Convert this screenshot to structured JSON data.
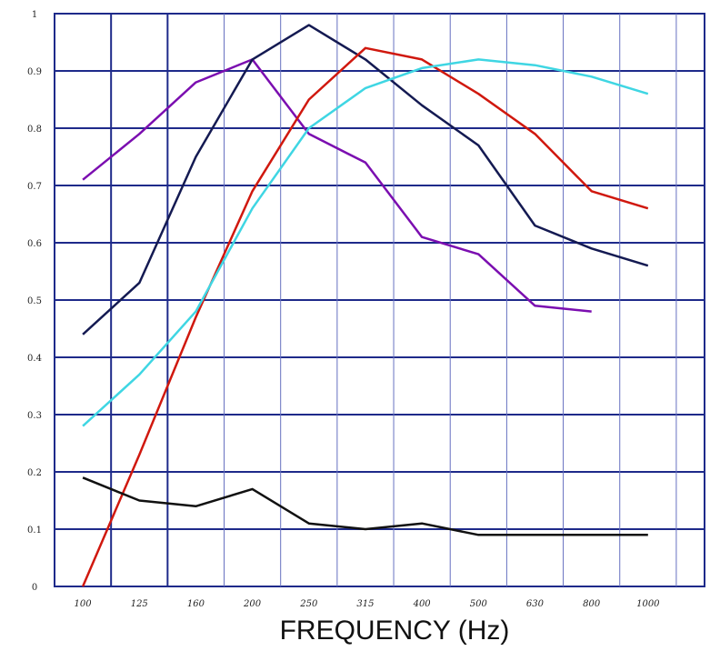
{
  "chart_data": {
    "type": "line",
    "title": "",
    "xlabel": "FREQUENCY (Hz)",
    "ylabel": "",
    "x": [
      "100",
      "125",
      "160",
      "200",
      "250",
      "315",
      "400",
      "500",
      "630",
      "800",
      "1000"
    ],
    "x_tick_labels": [
      "100",
      "125",
      "160",
      "200",
      "250",
      "315",
      "400",
      "500",
      "630",
      "800",
      "1000"
    ],
    "y_tick_labels": [
      "0",
      "0.1",
      "0.2",
      "0.3",
      "0.4",
      "0.5",
      "0.6",
      "0.7",
      "0.8",
      "0.9",
      "1"
    ],
    "ylim": [
      0,
      1
    ],
    "grid": true,
    "series": [
      {
        "color": "#7b0eb0",
        "values": [
          0.71,
          0.79,
          0.88,
          0.92,
          0.79,
          0.74,
          0.61,
          0.58,
          0.49,
          0.48,
          null
        ]
      },
      {
        "color": "#141a52",
        "values": [
          0.44,
          0.53,
          0.75,
          0.92,
          0.98,
          0.92,
          0.84,
          0.77,
          0.63,
          0.59,
          0.56
        ]
      },
      {
        "color": "#d0180e",
        "values": [
          0.0,
          0.23,
          0.47,
          0.69,
          0.85,
          0.94,
          0.92,
          0.86,
          0.79,
          0.69,
          0.66
        ]
      },
      {
        "color": "#3fd6e3",
        "values": [
          0.28,
          0.37,
          0.48,
          0.66,
          0.8,
          0.87,
          0.905,
          0.92,
          0.91,
          0.89,
          0.86
        ]
      },
      {
        "color": "#111111",
        "values": [
          0.19,
          0.15,
          0.14,
          0.17,
          0.11,
          0.1,
          0.11,
          0.09,
          0.09,
          0.09,
          0.09
        ]
      }
    ]
  }
}
